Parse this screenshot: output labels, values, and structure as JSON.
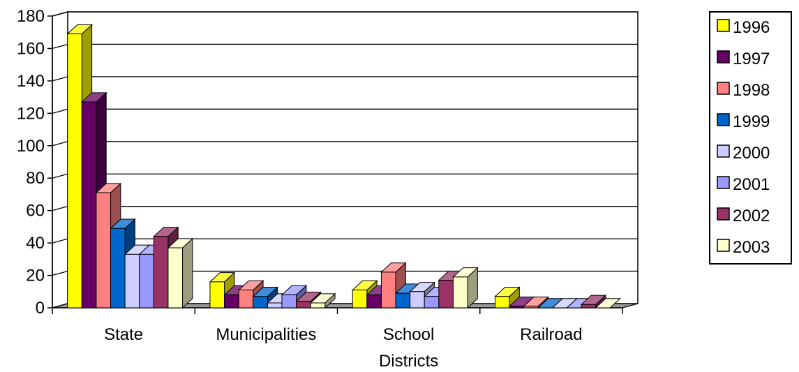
{
  "chart_data": {
    "type": "bar",
    "title": "",
    "xlabel": "",
    "ylabel": "",
    "ylim": [
      0,
      180
    ],
    "yticks": [
      "0",
      "20",
      "40",
      "60",
      "80",
      "100",
      "120",
      "140",
      "160",
      "180"
    ],
    "grid": true,
    "legend_position": "right",
    "categories": [
      [
        "State"
      ],
      [
        "Municipalities"
      ],
      [
        "School",
        "Districts"
      ],
      [
        "Railroad"
      ]
    ],
    "series": [
      {
        "name": "1996",
        "color": "#ffff00",
        "values": [
          169,
          16,
          11,
          7
        ]
      },
      {
        "name": "1997",
        "color": "#660066",
        "values": [
          127,
          8,
          8,
          1
        ]
      },
      {
        "name": "1998",
        "color": "#ff8080",
        "values": [
          71,
          11,
          22,
          1
        ]
      },
      {
        "name": "1999",
        "color": "#0066cc",
        "values": [
          49,
          7,
          9,
          0
        ]
      },
      {
        "name": "2000",
        "color": "#ccccff",
        "values": [
          33,
          3,
          10,
          0
        ]
      },
      {
        "name": "2001",
        "color": "#9999ff",
        "values": [
          33,
          8,
          7,
          0
        ]
      },
      {
        "name": "2002",
        "color": "#993366",
        "values": [
          44,
          4,
          17,
          2
        ]
      },
      {
        "name": "2003",
        "color": "#ffffcc",
        "values": [
          37,
          3,
          19,
          0
        ]
      }
    ]
  }
}
